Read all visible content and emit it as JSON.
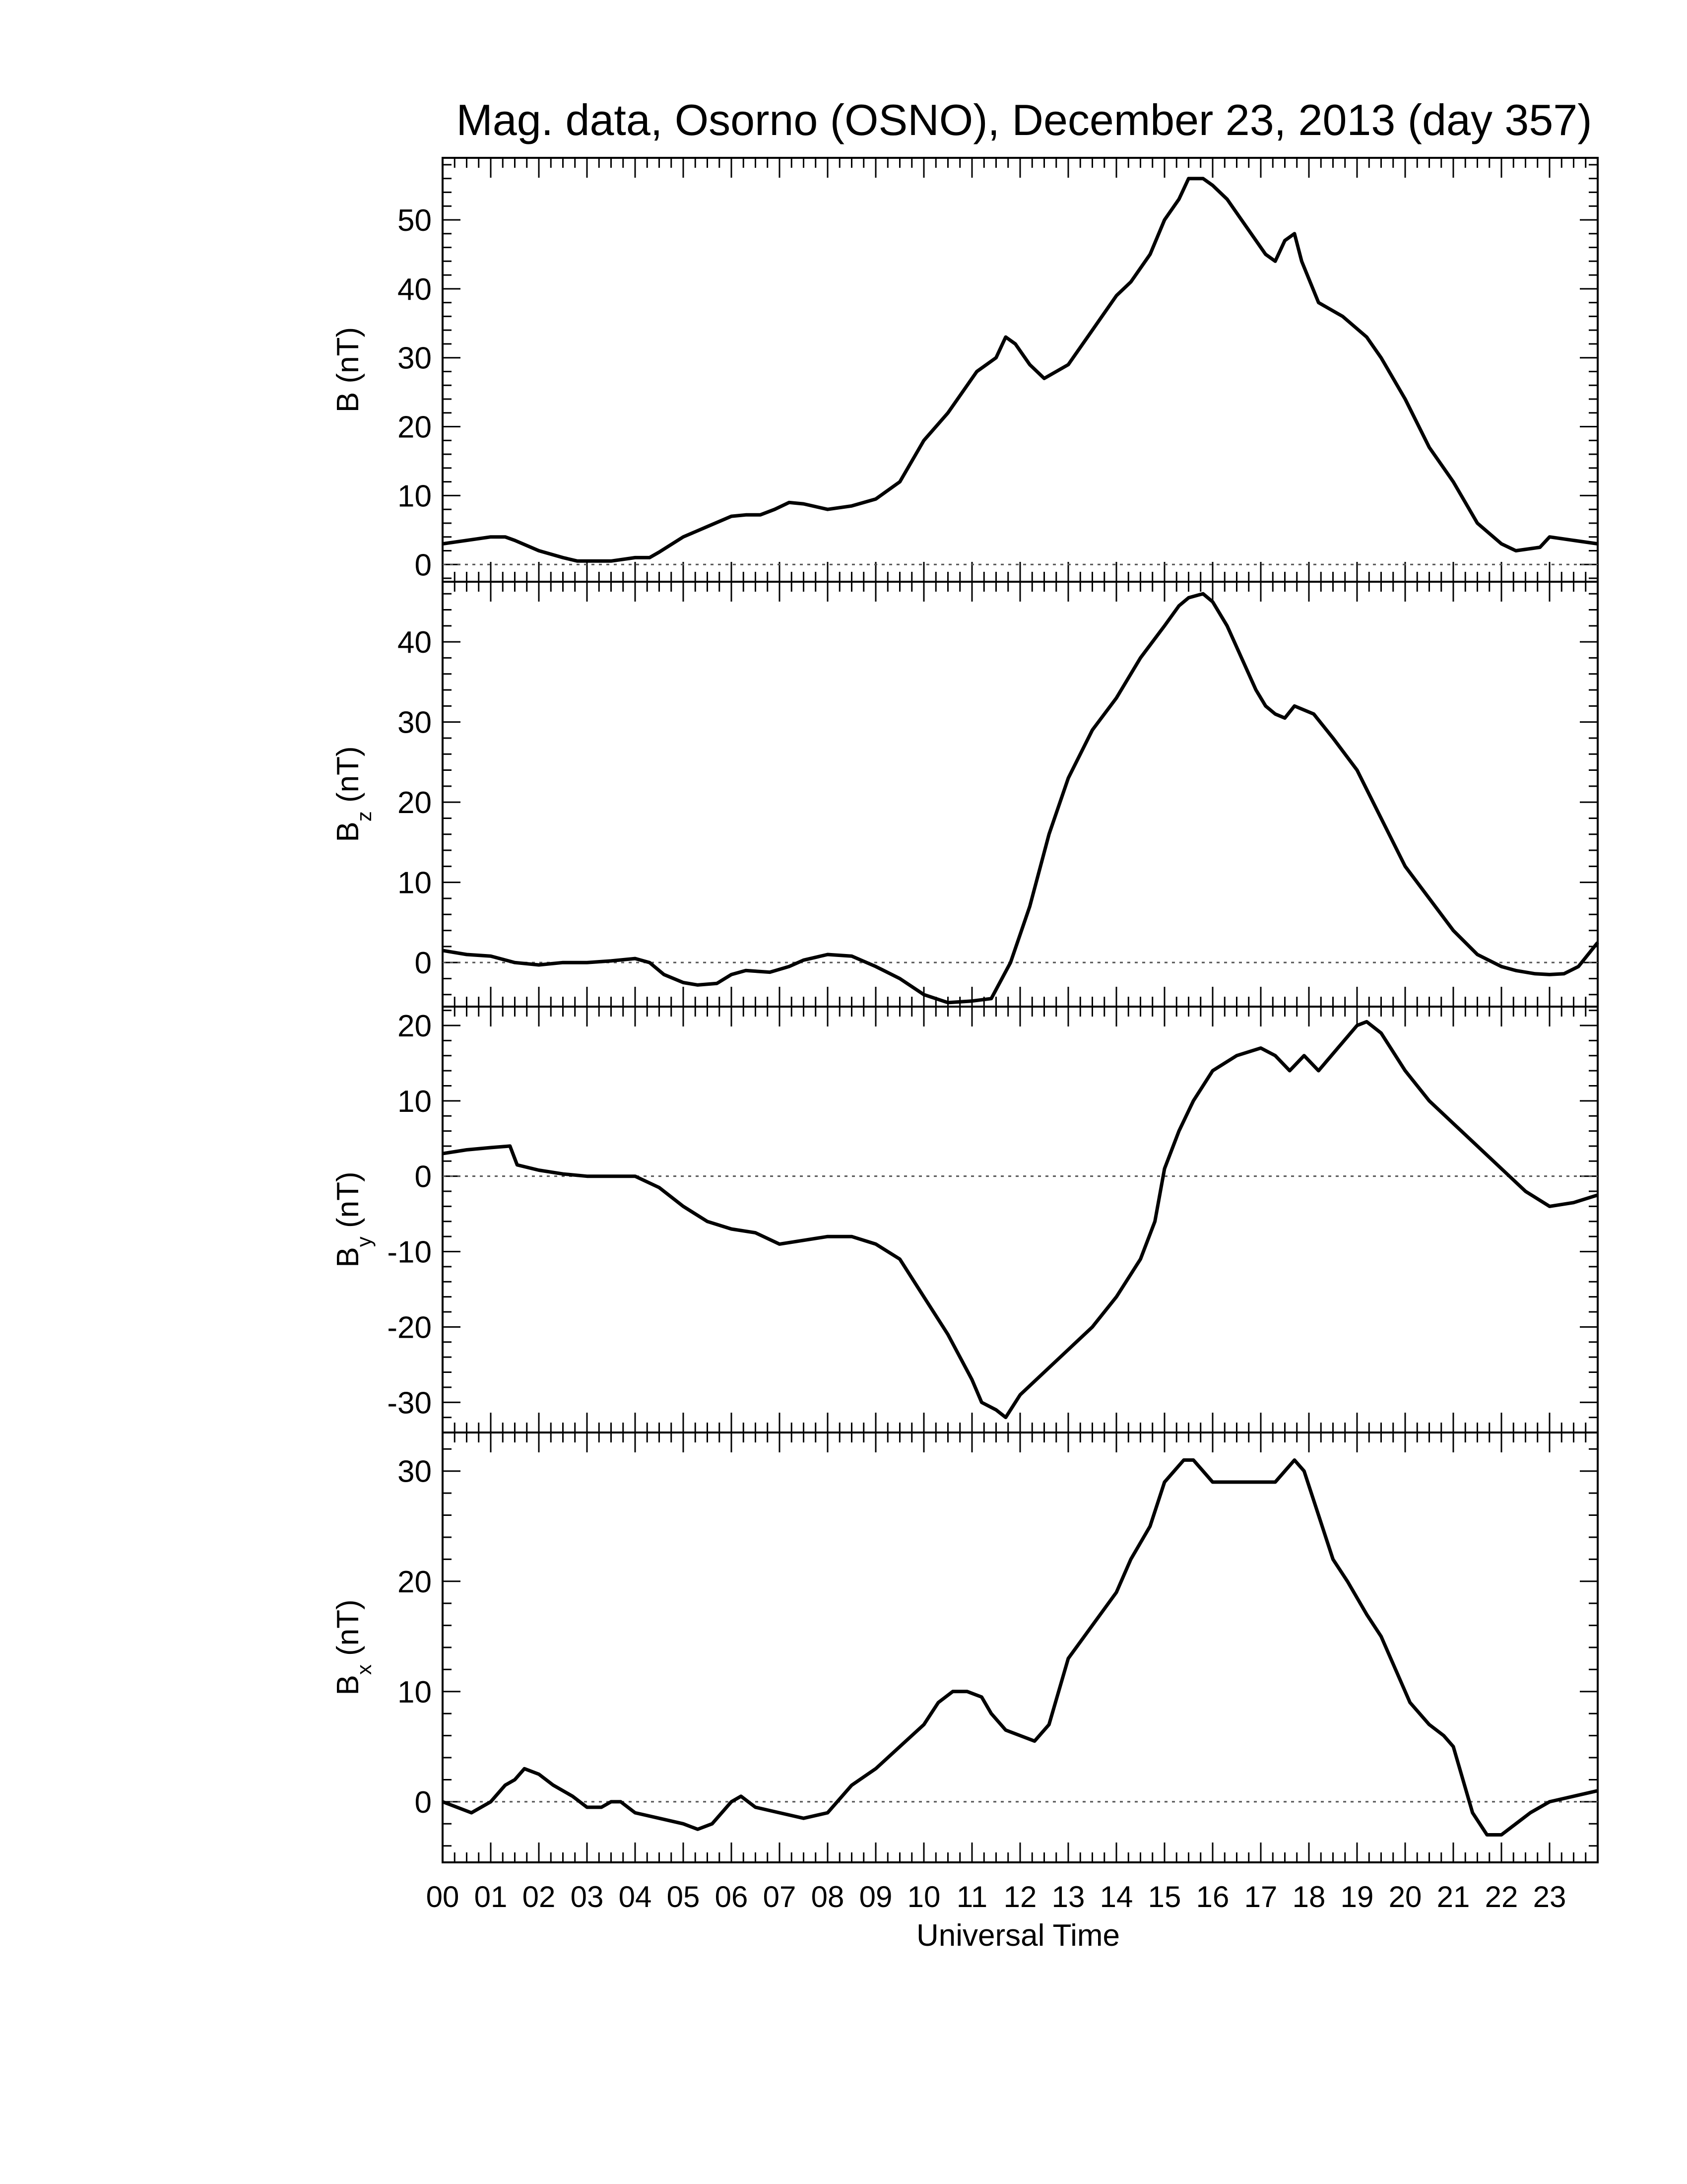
{
  "title": "Mag. data, Osorno (OSNO), December 23, 2013 (day 357)",
  "xlabel": "Universal Time",
  "x_ticks": [
    "00",
    "01",
    "02",
    "03",
    "04",
    "05",
    "06",
    "07",
    "08",
    "09",
    "10",
    "11",
    "12",
    "13",
    "14",
    "15",
    "16",
    "17",
    "18",
    "19",
    "20",
    "21",
    "22",
    "23"
  ],
  "colors": {
    "line": "#000000",
    "zero_line": "#555555",
    "background": "#ffffff"
  },
  "chart_data": [
    {
      "type": "line",
      "ylabel": "B (nT)",
      "ylabel_main": "B",
      "ylabel_sub": "",
      "ylabel_unit": " (nT)",
      "ylim": [
        -2.5,
        59
      ],
      "yticks": [
        0,
        10,
        20,
        30,
        40,
        50
      ],
      "ytick_labels": [
        "0",
        "10",
        "20",
        "30",
        "40",
        "50"
      ],
      "zero_line": true,
      "xlim": [
        0,
        24
      ],
      "series": [
        {
          "x": [
            0,
            0.5,
            1,
            1.3,
            1.5,
            2,
            2.5,
            2.8,
            3,
            3.5,
            4,
            4.3,
            4.5,
            5,
            5.5,
            6,
            6.3,
            6.6,
            6.9,
            7.2,
            7.5,
            8,
            8.5,
            9,
            9.5,
            10,
            10.5,
            10.9,
            11.1,
            11.3,
            11.5,
            11.7,
            11.9,
            12.2,
            12.5,
            13,
            13.5,
            14,
            14.3,
            14.7,
            15,
            15.3,
            15.5,
            15.8,
            16,
            16.3,
            16.6,
            16.9,
            17.1,
            17.3,
            17.5,
            17.7,
            17.85,
            18.2,
            18.7,
            19.2,
            19.5,
            20,
            20.5,
            21,
            21.5,
            22,
            22.3,
            22.8,
            23,
            23.5,
            24
          ],
          "y": [
            3,
            3.5,
            4,
            4,
            3.5,
            2,
            1,
            0.5,
            0.5,
            0.5,
            1,
            1,
            1.8,
            4,
            5.5,
            7,
            7.2,
            7.2,
            8,
            9,
            8.8,
            8,
            8.5,
            9.5,
            12,
            18,
            22,
            26,
            28,
            29,
            30,
            33,
            32,
            29,
            27,
            29,
            34,
            39,
            41,
            45,
            50,
            53,
            56,
            56,
            55,
            53,
            50,
            47,
            45,
            44,
            47,
            48,
            44,
            38,
            36,
            33,
            30,
            24,
            17,
            12,
            6,
            3,
            2,
            2.5,
            4,
            3.5,
            3
          ]
        }
      ]
    },
    {
      "type": "line",
      "ylabel": "Bz (nT)",
      "ylabel_main": "B",
      "ylabel_sub": "z",
      "ylabel_unit": " (nT)",
      "ylim": [
        -5.5,
        47.5
      ],
      "yticks": [
        0,
        10,
        20,
        30,
        40
      ],
      "ytick_labels": [
        "0",
        "10",
        "20",
        "30",
        "40"
      ],
      "zero_line": true,
      "xlim": [
        0,
        24
      ],
      "series": [
        {
          "x": [
            0,
            0.5,
            1,
            1.5,
            2,
            2.5,
            3,
            3.5,
            4,
            4.3,
            4.6,
            5,
            5.3,
            5.7,
            6,
            6.3,
            6.8,
            7.2,
            7.5,
            8,
            8.5,
            9,
            9.5,
            10,
            10.5,
            11,
            11.4,
            11.8,
            12.2,
            12.6,
            13,
            13.5,
            14,
            14.5,
            15,
            15.3,
            15.5,
            15.8,
            16,
            16.3,
            16.6,
            16.9,
            17.1,
            17.3,
            17.5,
            17.7,
            18.1,
            18.5,
            19,
            19.5,
            20,
            20.5,
            21,
            21.5,
            22,
            22.3,
            22.7,
            23,
            23.3,
            23.6,
            24
          ],
          "y": [
            1.5,
            1,
            0.8,
            0,
            -0.3,
            0,
            0,
            0.2,
            0.5,
            0,
            -1.5,
            -2.5,
            -2.8,
            -2.6,
            -1.5,
            -1,
            -1.2,
            -0.5,
            0.3,
            1,
            0.8,
            -0.5,
            -2,
            -4,
            -5,
            -4.8,
            -4.5,
            0,
            7,
            16,
            23,
            29,
            33,
            38,
            42,
            44.5,
            45.5,
            46,
            45,
            42,
            38,
            34,
            32,
            31,
            30.5,
            32,
            31,
            28,
            24,
            18,
            12,
            8,
            4,
            1,
            -0.5,
            -1,
            -1.4,
            -1.5,
            -1.4,
            -0.5,
            2.5
          ]
        }
      ]
    },
    {
      "type": "line",
      "ylabel": "By (nT)",
      "ylabel_main": "B",
      "ylabel_sub": "y",
      "ylabel_unit": " (nT)",
      "ylim": [
        -34,
        22.5
      ],
      "yticks": [
        -30,
        -20,
        -10,
        0,
        10,
        20
      ],
      "ytick_labels": [
        "-30",
        "-20",
        "-10",
        "0",
        "10",
        "20"
      ],
      "zero_line": true,
      "xlim": [
        0,
        24
      ],
      "series": [
        {
          "x": [
            0,
            0.5,
            1,
            1.4,
            1.55,
            2,
            2.5,
            3,
            3.5,
            4,
            4.5,
            5,
            5.5,
            6,
            6.5,
            7,
            7.5,
            8,
            8.5,
            9,
            9.5,
            10,
            10.5,
            11,
            11.2,
            11.5,
            11.7,
            12,
            12.5,
            13,
            13.5,
            14,
            14.5,
            14.8,
            15,
            15.3,
            15.6,
            16,
            16.5,
            17,
            17.3,
            17.6,
            17.9,
            18.2,
            18.6,
            19,
            19.2,
            19.5,
            20,
            20.5,
            21,
            21.5,
            22,
            22.5,
            23,
            23.5,
            24
          ],
          "y": [
            3,
            3.5,
            3.8,
            4,
            1.5,
            0.8,
            0.3,
            0,
            0,
            0,
            -1.5,
            -4,
            -6,
            -7,
            -7.5,
            -9,
            -8.5,
            -8,
            -8,
            -9,
            -11,
            -16,
            -21,
            -27,
            -30,
            -31,
            -32,
            -29,
            -26,
            -23,
            -20,
            -16,
            -11,
            -6,
            1,
            6,
            10,
            14,
            16,
            17,
            16,
            14,
            16,
            14,
            17,
            20,
            20.5,
            19,
            14,
            10,
            7,
            4,
            1,
            -2,
            -4,
            -3.5,
            -2.5
          ]
        }
      ]
    },
    {
      "type": "line",
      "ylabel": "Bx (nT)",
      "ylabel_main": "B",
      "ylabel_sub": "x",
      "ylabel_unit": " (nT)",
      "ylim": [
        -5.5,
        33.5
      ],
      "yticks": [
        0,
        10,
        20,
        30
      ],
      "ytick_labels": [
        "0",
        "10",
        "20",
        "30"
      ],
      "zero_line": true,
      "xlim": [
        0,
        24
      ],
      "series": [
        {
          "x": [
            0,
            0.3,
            0.6,
            1,
            1.3,
            1.5,
            1.7,
            2,
            2.3,
            2.7,
            3,
            3.3,
            3.5,
            3.7,
            4,
            4.5,
            5,
            5.3,
            5.6,
            6,
            6.2,
            6.5,
            7,
            7.5,
            8,
            8.5,
            9,
            9.5,
            10,
            10.3,
            10.6,
            10.9,
            11.2,
            11.4,
            11.7,
            12,
            12.3,
            12.6,
            13,
            13.5,
            14,
            14.3,
            14.7,
            15,
            15.2,
            15.4,
            15.6,
            15.8,
            16,
            16.5,
            17,
            17.3,
            17.5,
            17.7,
            17.9,
            18.2,
            18.5,
            18.8,
            19.2,
            19.5,
            19.8,
            20.1,
            20.5,
            20.8,
            21,
            21.2,
            21.4,
            21.7,
            22,
            22.3,
            22.6,
            23,
            23.5,
            24
          ],
          "y": [
            0,
            -0.5,
            -1,
            0,
            1.5,
            2,
            3,
            2.5,
            1.5,
            0.5,
            -0.5,
            -0.5,
            0,
            0,
            -1,
            -1.5,
            -2,
            -2.5,
            -2,
            0,
            0.5,
            -0.5,
            -1,
            -1.5,
            -1,
            1.5,
            3,
            5,
            7,
            9,
            10,
            10,
            9.5,
            8,
            6.5,
            6,
            5.5,
            7,
            13,
            16,
            19,
            22,
            25,
            29,
            30,
            31,
            31,
            30,
            29,
            29,
            29,
            29,
            30,
            31,
            30,
            26,
            22,
            20,
            17,
            15,
            12,
            9,
            7,
            6,
            5,
            2,
            -1,
            -3,
            -3,
            -2,
            -1,
            0,
            0.5,
            1
          ]
        }
      ]
    }
  ]
}
